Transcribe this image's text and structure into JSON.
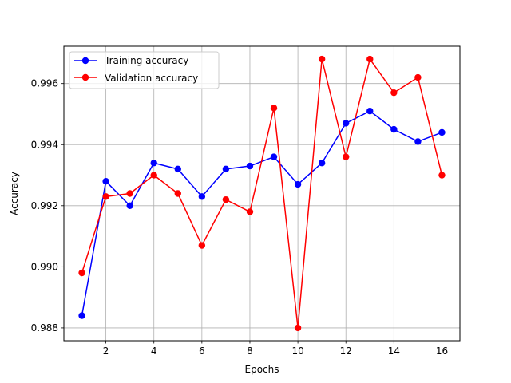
{
  "chart_data": {
    "type": "line",
    "title": "",
    "xlabel": "Epochs",
    "ylabel": "Accuracy",
    "x": [
      1,
      2,
      3,
      4,
      5,
      6,
      7,
      8,
      9,
      10,
      11,
      12,
      13,
      14,
      15,
      16
    ],
    "xlim": [
      0.25,
      16.75
    ],
    "ylim": [
      0.98758,
      0.99722
    ],
    "xticks": [
      2,
      4,
      6,
      8,
      10,
      12,
      14,
      16
    ],
    "yticks": [
      0.988,
      0.99,
      0.992,
      0.994,
      0.996
    ],
    "xtick_labels": [
      "2",
      "4",
      "6",
      "8",
      "10",
      "12",
      "14",
      "16"
    ],
    "ytick_labels": [
      "0.988",
      "0.990",
      "0.992",
      "0.994",
      "0.996"
    ],
    "grid": true,
    "legend_position": "top-left",
    "series": [
      {
        "name": "Training accuracy",
        "color": "#0000ff",
        "marker": "circle",
        "values": [
          0.9884,
          0.9928,
          0.992,
          0.9934,
          0.9932,
          0.9923,
          0.9932,
          0.9933,
          0.9936,
          0.9927,
          0.9934,
          0.9947,
          0.9951,
          0.9945,
          0.9941,
          0.9944
        ]
      },
      {
        "name": "Validation accuracy",
        "color": "#ff0000",
        "marker": "circle",
        "values": [
          0.9898,
          0.9923,
          0.9924,
          0.993,
          0.9924,
          0.9907,
          0.9922,
          0.9918,
          0.9952,
          0.988,
          0.9968,
          0.9936,
          0.9968,
          0.9957,
          0.9962,
          0.993
        ]
      }
    ]
  }
}
